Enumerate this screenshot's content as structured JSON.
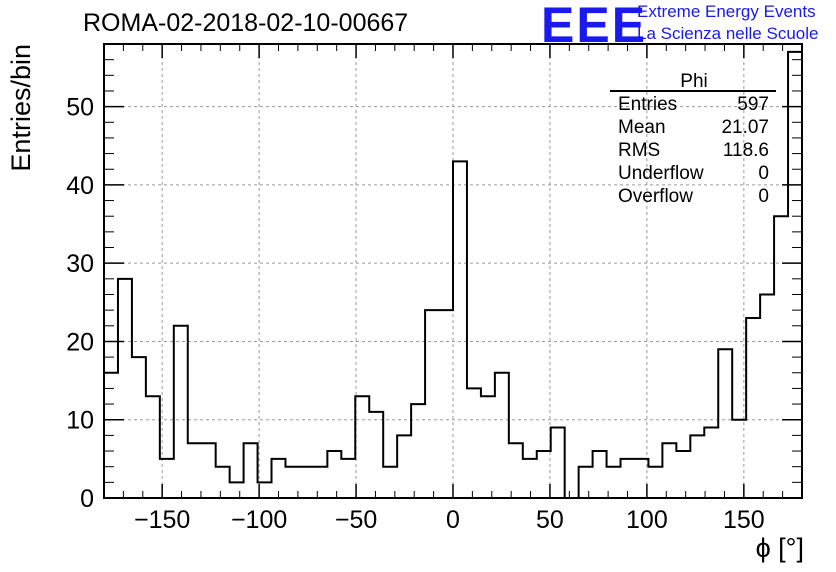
{
  "header": {
    "title": "ROMA-02-2018-02-10-00667",
    "logo_text": "EEE",
    "logo_line1": "Extreme Energy Events",
    "logo_line2": "La Scienza nelle Scuole"
  },
  "stats": {
    "name": "Phi",
    "rows": [
      {
        "label": "Entries",
        "value": "597"
      },
      {
        "label": "Mean",
        "value": "21.07"
      },
      {
        "label": "RMS",
        "value": "118.6"
      },
      {
        "label": "Underflow",
        "value": "0"
      },
      {
        "label": "Overflow",
        "value": "0"
      }
    ]
  },
  "colors": {
    "logo": "#1a1aee",
    "line": "#000000",
    "grid": "#9a9a9a"
  },
  "chart_data": {
    "type": "bar",
    "style": "step-histogram",
    "xlabel": "ϕ [°]",
    "ylabel": "Entries/bin",
    "xlim": [
      -180,
      180
    ],
    "ylim": [
      0,
      58
    ],
    "bin_width": 7.2,
    "x_ticks": [
      -150,
      -100,
      -50,
      0,
      50,
      100,
      150
    ],
    "y_ticks": [
      0,
      10,
      20,
      30,
      40,
      50
    ],
    "grid": true,
    "values": [
      16,
      28,
      18,
      13,
      5,
      22,
      7,
      7,
      4,
      2,
      7,
      2,
      5,
      4,
      4,
      4,
      6,
      5,
      13,
      11,
      4,
      8,
      12,
      24,
      24,
      43,
      14,
      13,
      16,
      7,
      5,
      6,
      9,
      0,
      4,
      6,
      4,
      5,
      5,
      4,
      7,
      6,
      8,
      9,
      19,
      10,
      23,
      26,
      36,
      57
    ]
  }
}
